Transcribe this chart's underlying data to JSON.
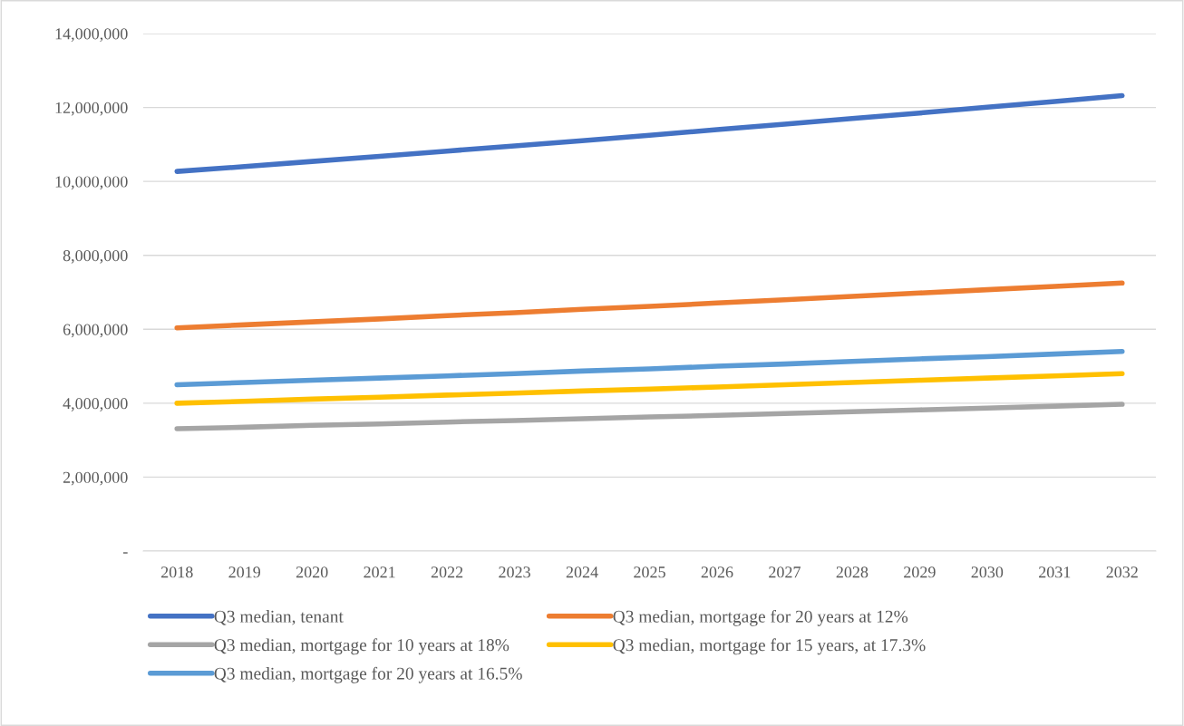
{
  "chart_data": {
    "type": "line",
    "categories": [
      "2018",
      "2019",
      "2020",
      "2021",
      "2022",
      "2023",
      "2024",
      "2025",
      "2026",
      "2027",
      "2028",
      "2029",
      "2030",
      "2031",
      "2032"
    ],
    "series": [
      {
        "name": "Q3 median, tenant",
        "color": "#4472c4",
        "values": [
          10270000,
          10400000,
          10540000,
          10680000,
          10820000,
          10960000,
          11100000,
          11250000,
          11400000,
          11550000,
          11700000,
          11850000,
          12010000,
          12160000,
          12320000
        ]
      },
      {
        "name": "Q3 median, mortgage for 20 years at 12%",
        "color": "#ed7d31",
        "values": [
          6040000,
          6120000,
          6200000,
          6280000,
          6370000,
          6450000,
          6540000,
          6620000,
          6710000,
          6800000,
          6890000,
          6980000,
          7070000,
          7160000,
          7250000
        ]
      },
      {
        "name": "Q3 median, mortgage for 10 years at 18%",
        "color": "#a5a5a5",
        "values": [
          3310000,
          3350000,
          3400000,
          3440000,
          3490000,
          3530000,
          3580000,
          3630000,
          3670000,
          3720000,
          3770000,
          3820000,
          3870000,
          3920000,
          3970000
        ]
      },
      {
        "name": "Q3 median, mortgage for 15 years, at 17.3%",
        "color": "#ffc000",
        "values": [
          4000000,
          4050000,
          4110000,
          4160000,
          4220000,
          4270000,
          4330000,
          4380000,
          4440000,
          4500000,
          4560000,
          4620000,
          4680000,
          4740000,
          4800000
        ]
      },
      {
        "name": "Q3 median, mortgage for 20 years at 16.5%",
        "color": "#5b9bd5",
        "values": [
          4500000,
          4560000,
          4620000,
          4680000,
          4740000,
          4800000,
          4870000,
          4930000,
          5000000,
          5060000,
          5130000,
          5200000,
          5260000,
          5330000,
          5400000
        ]
      }
    ],
    "ylim": [
      0,
      14000000
    ],
    "yticks": [
      {
        "value": 0,
        "label": "-"
      },
      {
        "value": 2000000,
        "label": "2,000,000"
      },
      {
        "value": 4000000,
        "label": "4,000,000"
      },
      {
        "value": 6000000,
        "label": "6,000,000"
      },
      {
        "value": 8000000,
        "label": "8,000,000"
      },
      {
        "value": 10000000,
        "label": "10,000,000"
      },
      {
        "value": 12000000,
        "label": "12,000,000"
      },
      {
        "value": 14000000,
        "label": "14,000,000"
      }
    ],
    "grid": "y",
    "legend": "bottom",
    "marker": "none",
    "line_style": "solid"
  }
}
